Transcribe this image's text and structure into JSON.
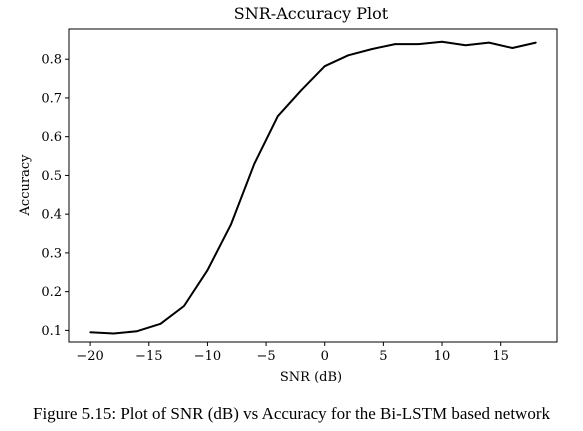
{
  "chart_data": {
    "type": "line",
    "title": "SNR-Accuracy Plot",
    "xlabel": "SNR (dB)",
    "ylabel": "Accuracy",
    "xlim": [
      -21.8,
      19.8
    ],
    "ylim": [
      0.07,
      0.878
    ],
    "xticks": [
      -20,
      -15,
      -10,
      -5,
      0,
      5,
      10,
      15
    ],
    "xtick_labels": [
      "−20",
      "−15",
      "−10",
      "−5",
      "0",
      "5",
      "10",
      "15"
    ],
    "yticks": [
      0.1,
      0.2,
      0.3,
      0.4,
      0.5,
      0.6,
      0.7,
      0.8
    ],
    "ytick_labels": [
      "0.1",
      "0.2",
      "0.3",
      "0.4",
      "0.5",
      "0.6",
      "0.7",
      "0.8"
    ],
    "grid": false,
    "series": [
      {
        "x": [
          -20,
          -18,
          -16,
          -14,
          -12,
          -10,
          -8,
          -6,
          -4,
          -2,
          0,
          2,
          4,
          6,
          8,
          10,
          12,
          14,
          16,
          18
        ],
        "y": [
          0.095,
          0.092,
          0.098,
          0.117,
          0.163,
          0.255,
          0.373,
          0.53,
          0.653,
          0.72,
          0.782,
          0.81,
          0.826,
          0.839,
          0.839,
          0.845,
          0.836,
          0.843,
          0.829,
          0.843
        ],
        "color": "#000000"
      }
    ]
  },
  "caption": "Figure 5.15: Plot of SNR (dB) vs Accuracy for the Bi-LSTM based network"
}
